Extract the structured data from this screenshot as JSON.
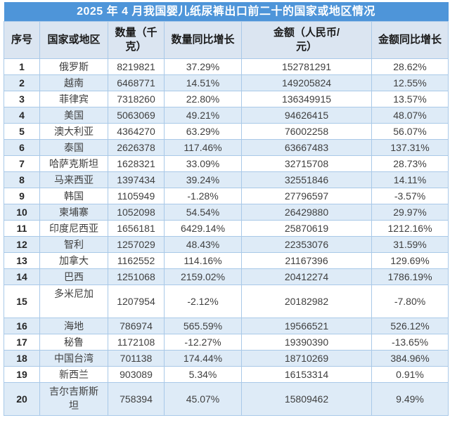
{
  "colors": {
    "title_bg": "#4E95D9",
    "title_text": "#FFFFFF",
    "header_bg": "#DBE5F1",
    "stripe_bg": "#DEEBF7",
    "row_bg": "#FFFFFF",
    "border": "#A9C9E8",
    "text": "#3F3F3F"
  },
  "chart_data": {
    "type": "table",
    "title": "2025 年 4 月我国婴儿纸尿裤出口前二十的国家或地区情况",
    "columns": [
      "序号",
      "国家或地区",
      "数量（千克）",
      "数量同比增长",
      "金额（人民币/元）",
      "金额同比增长"
    ],
    "rows": [
      [
        "1",
        "俄罗斯",
        "8219821",
        "37.29%",
        "152781291",
        "28.62%"
      ],
      [
        "2",
        "越南",
        "6468771",
        "14.51%",
        "149205824",
        "12.55%"
      ],
      [
        "3",
        "菲律宾",
        "7318260",
        "22.80%",
        "136349915",
        "13.57%"
      ],
      [
        "4",
        "美国",
        "5063069",
        "49.21%",
        "94626415",
        "48.07%"
      ],
      [
        "5",
        "澳大利亚",
        "4364270",
        "63.29%",
        "76002258",
        "56.07%"
      ],
      [
        "6",
        "泰国",
        "2626378",
        "117.46%",
        "63667483",
        "137.31%"
      ],
      [
        "7",
        "哈萨克斯坦",
        "1628321",
        "33.09%",
        "32715708",
        "28.73%"
      ],
      [
        "8",
        "马来西亚",
        "1397434",
        "39.24%",
        "32551846",
        "14.11%"
      ],
      [
        "9",
        "韩国",
        "1105949",
        "-1.28%",
        "27796597",
        "-3.57%"
      ],
      [
        "10",
        "柬埔寨",
        "1052098",
        "54.54%",
        "26429880",
        "29.97%"
      ],
      [
        "11",
        "印度尼西亚",
        "1656181",
        "6429.14%",
        "25870619",
        "1212.16%"
      ],
      [
        "12",
        "智利",
        "1257029",
        "48.43%",
        "22353076",
        "31.59%"
      ],
      [
        "13",
        "加拿大",
        "1162552",
        "114.16%",
        "21167396",
        "129.69%"
      ],
      [
        "14",
        "巴西",
        "1251068",
        "2159.02%",
        "20412274",
        "1786.19%"
      ],
      [
        "15",
        "多米尼加",
        "1207954",
        "-2.12%",
        "20182982",
        "-7.80%"
      ],
      [
        "16",
        "海地",
        "786974",
        "565.59%",
        "19566521",
        "526.12%"
      ],
      [
        "17",
        "秘鲁",
        "1172108",
        "-12.27%",
        "19390390",
        "-13.65%"
      ],
      [
        "18",
        "中国台湾",
        "701138",
        "174.44%",
        "18710269",
        "384.96%"
      ],
      [
        "19",
        "新西兰",
        "903089",
        "5.34%",
        "16153314",
        "0.91%"
      ],
      [
        "20",
        "吉尔吉斯斯坦",
        "758394",
        "45.07%",
        "15809462",
        "9.49%"
      ]
    ]
  }
}
